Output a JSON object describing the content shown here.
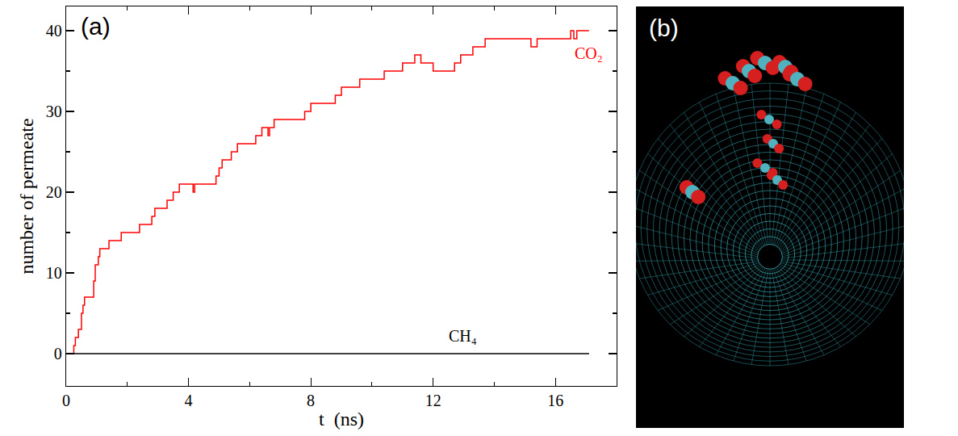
{
  "chart_data": {
    "type": "line",
    "panel_label": "(a)",
    "xlabel": "t  (ns)",
    "ylabel": "number of permeate",
    "x": [
      0,
      0.25,
      0.3,
      0.4,
      0.5,
      0.55,
      0.6,
      0.9,
      0.95,
      1.05,
      1.1,
      1.4,
      1.8,
      2.4,
      2.8,
      2.9,
      3.3,
      3.5,
      3.7,
      4.15,
      4.2,
      4.9,
      5.0,
      5.1,
      5.4,
      5.6,
      6.2,
      6.4,
      6.6,
      6.65,
      6.8,
      7.8,
      8.0,
      8.8,
      9.0,
      9.6,
      10.4,
      11.0,
      11.4,
      11.6,
      12.0,
      12.7,
      12.9,
      13.3,
      13.7,
      15.2,
      15.4,
      16.5,
      16.6,
      16.7,
      17.1
    ],
    "series": [
      {
        "name": "CO₂",
        "color": "#ff0000",
        "line_style": "step",
        "values": [
          0,
          1,
          2,
          3,
          5,
          6,
          7,
          9,
          11,
          12,
          13,
          14,
          15,
          16,
          17,
          18,
          19,
          20,
          21,
          20,
          21,
          22,
          23,
          24,
          25,
          26,
          27,
          28,
          27,
          28,
          29,
          30,
          31,
          32,
          33,
          34,
          35,
          36,
          37,
          36,
          35,
          36,
          37,
          38,
          39,
          38,
          39,
          40,
          39,
          40,
          40
        ]
      },
      {
        "name": "CH₄",
        "color": "#000000",
        "line_style": "step",
        "values": [
          0,
          0,
          0,
          0,
          0,
          0,
          0,
          0,
          0,
          0,
          0,
          0,
          0,
          0,
          0,
          0,
          0,
          0,
          0,
          0,
          0,
          0,
          0,
          0,
          0,
          0,
          0,
          0,
          0,
          0,
          0,
          0,
          0,
          0,
          0,
          0,
          0,
          0,
          0,
          0,
          0,
          0,
          0,
          0,
          0,
          0,
          0,
          0,
          0,
          0,
          0
        ]
      }
    ],
    "xlim": [
      0,
      18
    ],
    "ylim": [
      -4,
      43
    ],
    "xticks": [
      0,
      4,
      8,
      12,
      16
    ],
    "yticks": [
      0,
      10,
      20,
      30,
      40
    ],
    "grid": false
  },
  "image": {
    "panel_label": "(b)"
  }
}
